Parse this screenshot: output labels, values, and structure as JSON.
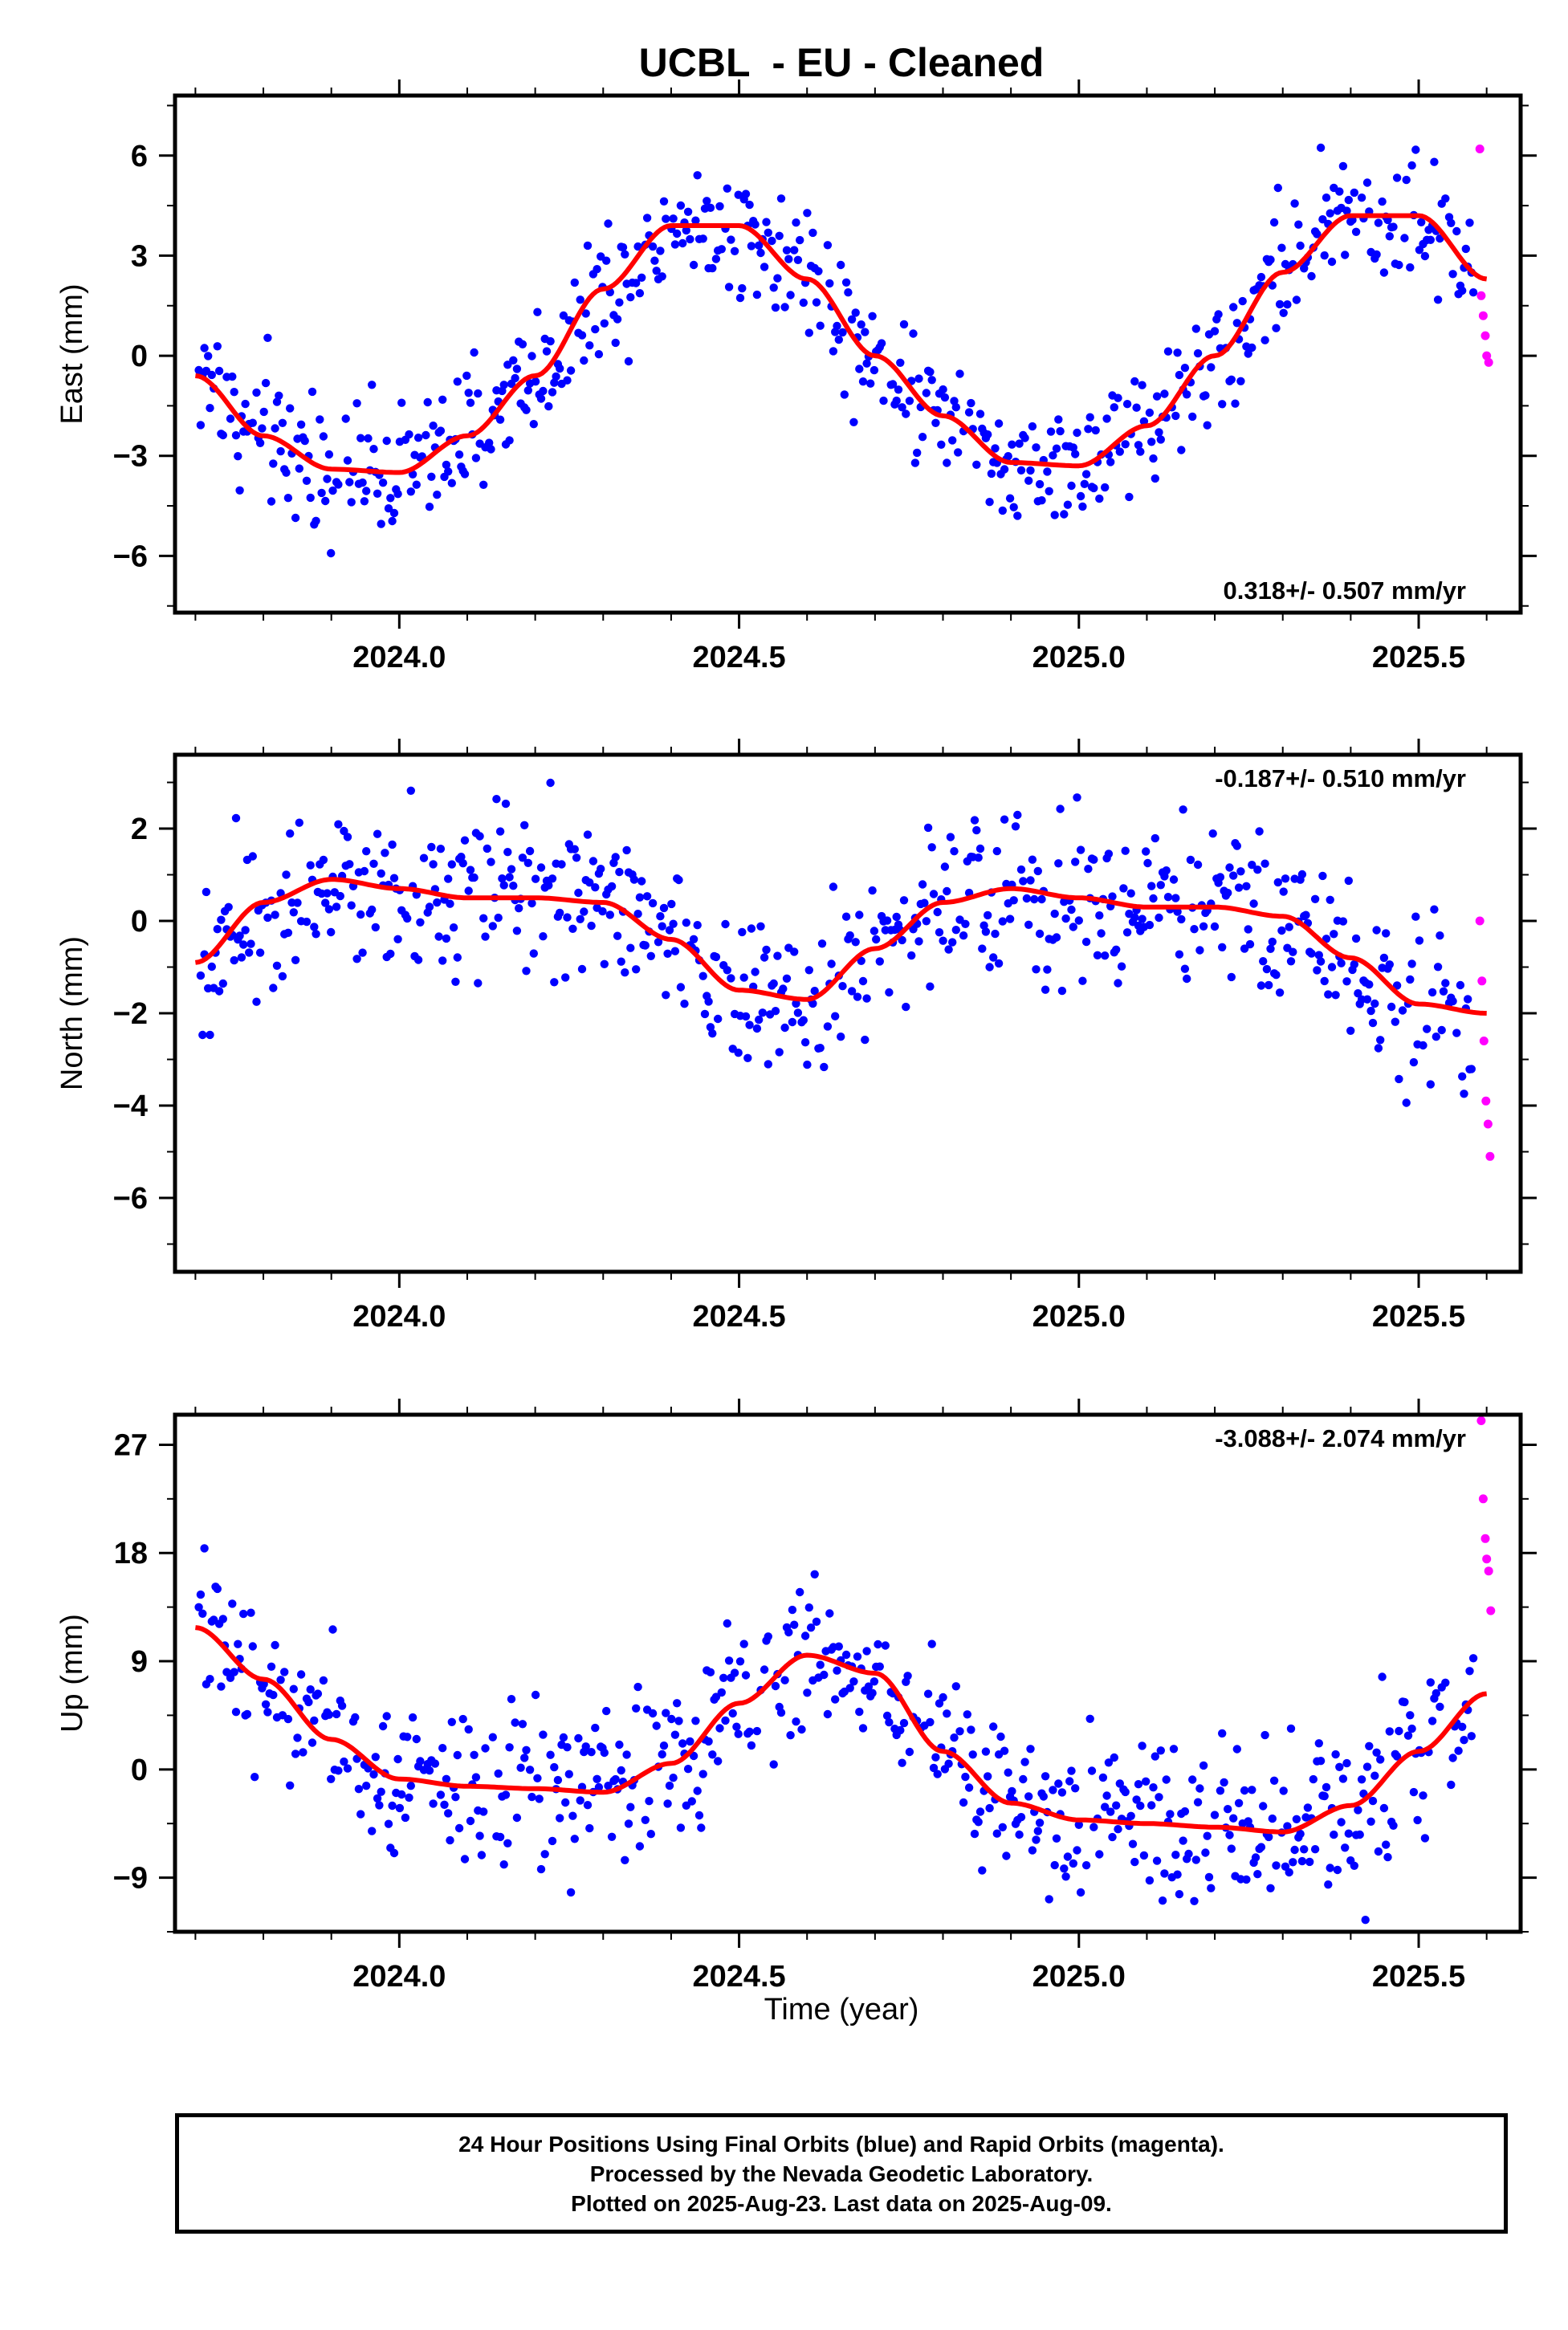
{
  "title": "UCBL  - EU - Cleaned",
  "xlabel": "Time (year)",
  "footer": {
    "line1": "24 Hour Positions Using Final Orbits (blue) and Rapid Orbits (magenta).",
    "line2": "Processed by the Nevada Geodetic Laboratory.",
    "line3": "Plotted on 2025-Aug-23. Last data on 2025-Aug-09."
  },
  "colors": {
    "final": "#0000ff",
    "rapid": "#ff00ff",
    "fit": "#ff0000",
    "frame": "#000000"
  },
  "chart_data": [
    {
      "type": "scatter",
      "ylabel": "East (mm)",
      "rate": "0.318+/- 0.507 mm/yr",
      "rate_placement": "bottom-right",
      "xlim": [
        2023.67,
        2025.65
      ],
      "ylim": [
        -7.7,
        7.8
      ],
      "xticks": [
        2024.0,
        2024.5,
        2025.0,
        2025.5
      ],
      "xtick_labels": [
        "2024.0",
        "2024.5",
        "2025.0",
        "2025.5"
      ],
      "yticks": [
        -6,
        -3,
        0,
        3,
        6
      ],
      "ytick_labels": [
        "−6",
        "−3",
        "0",
        "3",
        "6"
      ],
      "fit_x": [
        2023.7,
        2023.8,
        2023.9,
        2024.0,
        2024.1,
        2024.2,
        2024.3,
        2024.4,
        2024.5,
        2024.6,
        2024.7,
        2024.8,
        2024.9,
        2025.0,
        2025.1,
        2025.2,
        2025.3,
        2025.4,
        2025.5,
        2025.6
      ],
      "fit_y": [
        -0.6,
        -2.4,
        -3.4,
        -3.5,
        -2.4,
        -0.6,
        2.0,
        3.9,
        3.9,
        2.3,
        0.0,
        -1.8,
        -3.2,
        -3.3,
        -2.1,
        0.0,
        2.5,
        4.2,
        4.2,
        2.3
      ],
      "noise": 1.1,
      "rapid_x": [
        2025.59,
        2025.592,
        2025.595,
        2025.598,
        2025.6,
        2025.603
      ],
      "rapid_y": [
        6.2,
        1.8,
        1.2,
        0.6,
        0.0,
        -0.2
      ]
    },
    {
      "type": "scatter",
      "ylabel": "North (mm)",
      "rate": "-0.187+/- 0.510 mm/yr",
      "rate_placement": "top-right",
      "xlim": [
        2023.67,
        2025.65
      ],
      "ylim": [
        -7.6,
        3.6
      ],
      "xticks": [
        2024.0,
        2024.5,
        2025.0,
        2025.5
      ],
      "xtick_labels": [
        "2024.0",
        "2024.5",
        "2025.0",
        "2025.5"
      ],
      "yticks": [
        -6,
        -4,
        -2,
        0,
        2
      ],
      "ytick_labels": [
        "−6",
        "−4",
        "−2",
        "0",
        "2"
      ],
      "fit_x": [
        2023.7,
        2023.8,
        2023.9,
        2024.0,
        2024.1,
        2024.2,
        2024.3,
        2024.4,
        2024.5,
        2024.6,
        2024.7,
        2024.8,
        2024.9,
        2025.0,
        2025.1,
        2025.2,
        2025.3,
        2025.4,
        2025.5,
        2025.6
      ],
      "fit_y": [
        -0.9,
        0.4,
        0.9,
        0.7,
        0.5,
        0.5,
        0.4,
        -0.4,
        -1.5,
        -1.7,
        -0.6,
        0.4,
        0.7,
        0.5,
        0.3,
        0.3,
        0.1,
        -0.8,
        -1.8,
        -2.0
      ],
      "noise": 0.95,
      "rapid_x": [
        2025.59,
        2025.593,
        2025.596,
        2025.599,
        2025.602,
        2025.605
      ],
      "rapid_y": [
        0.0,
        -1.3,
        -2.6,
        -3.9,
        -4.4,
        -5.1
      ]
    },
    {
      "type": "scatter",
      "ylabel": "Up (mm)",
      "rate": "-3.088+/- 2.074 mm/yr",
      "rate_placement": "top-right",
      "xlim": [
        2023.67,
        2025.65
      ],
      "ylim": [
        -13.5,
        29.5
      ],
      "xticks": [
        2024.0,
        2024.5,
        2025.0,
        2025.5
      ],
      "xtick_labels": [
        "2024.0",
        "2024.5",
        "2025.0",
        "2025.5"
      ],
      "yticks": [
        -9,
        0,
        9,
        18,
        27
      ],
      "ytick_labels": [
        "−9",
        "0",
        "9",
        "18",
        "27"
      ],
      "fit_x": [
        2023.7,
        2023.8,
        2023.9,
        2024.0,
        2024.1,
        2024.2,
        2024.3,
        2024.4,
        2024.5,
        2024.6,
        2024.7,
        2024.8,
        2024.9,
        2025.0,
        2025.1,
        2025.2,
        2025.3,
        2025.4,
        2025.5,
        2025.6
      ],
      "fit_y": [
        11.8,
        7.5,
        2.5,
        -0.8,
        -1.4,
        -1.6,
        -1.9,
        0.5,
        5.5,
        9.5,
        8.0,
        1.5,
        -2.8,
        -4.2,
        -4.5,
        -4.8,
        -5.2,
        -3.0,
        1.5,
        6.3
      ],
      "noise": 3.6,
      "rapid_x": [
        2025.592,
        2025.595,
        2025.598,
        2025.6,
        2025.603,
        2025.606
      ],
      "rapid_y": [
        29.0,
        22.5,
        19.2,
        17.5,
        16.5,
        13.2
      ]
    }
  ]
}
